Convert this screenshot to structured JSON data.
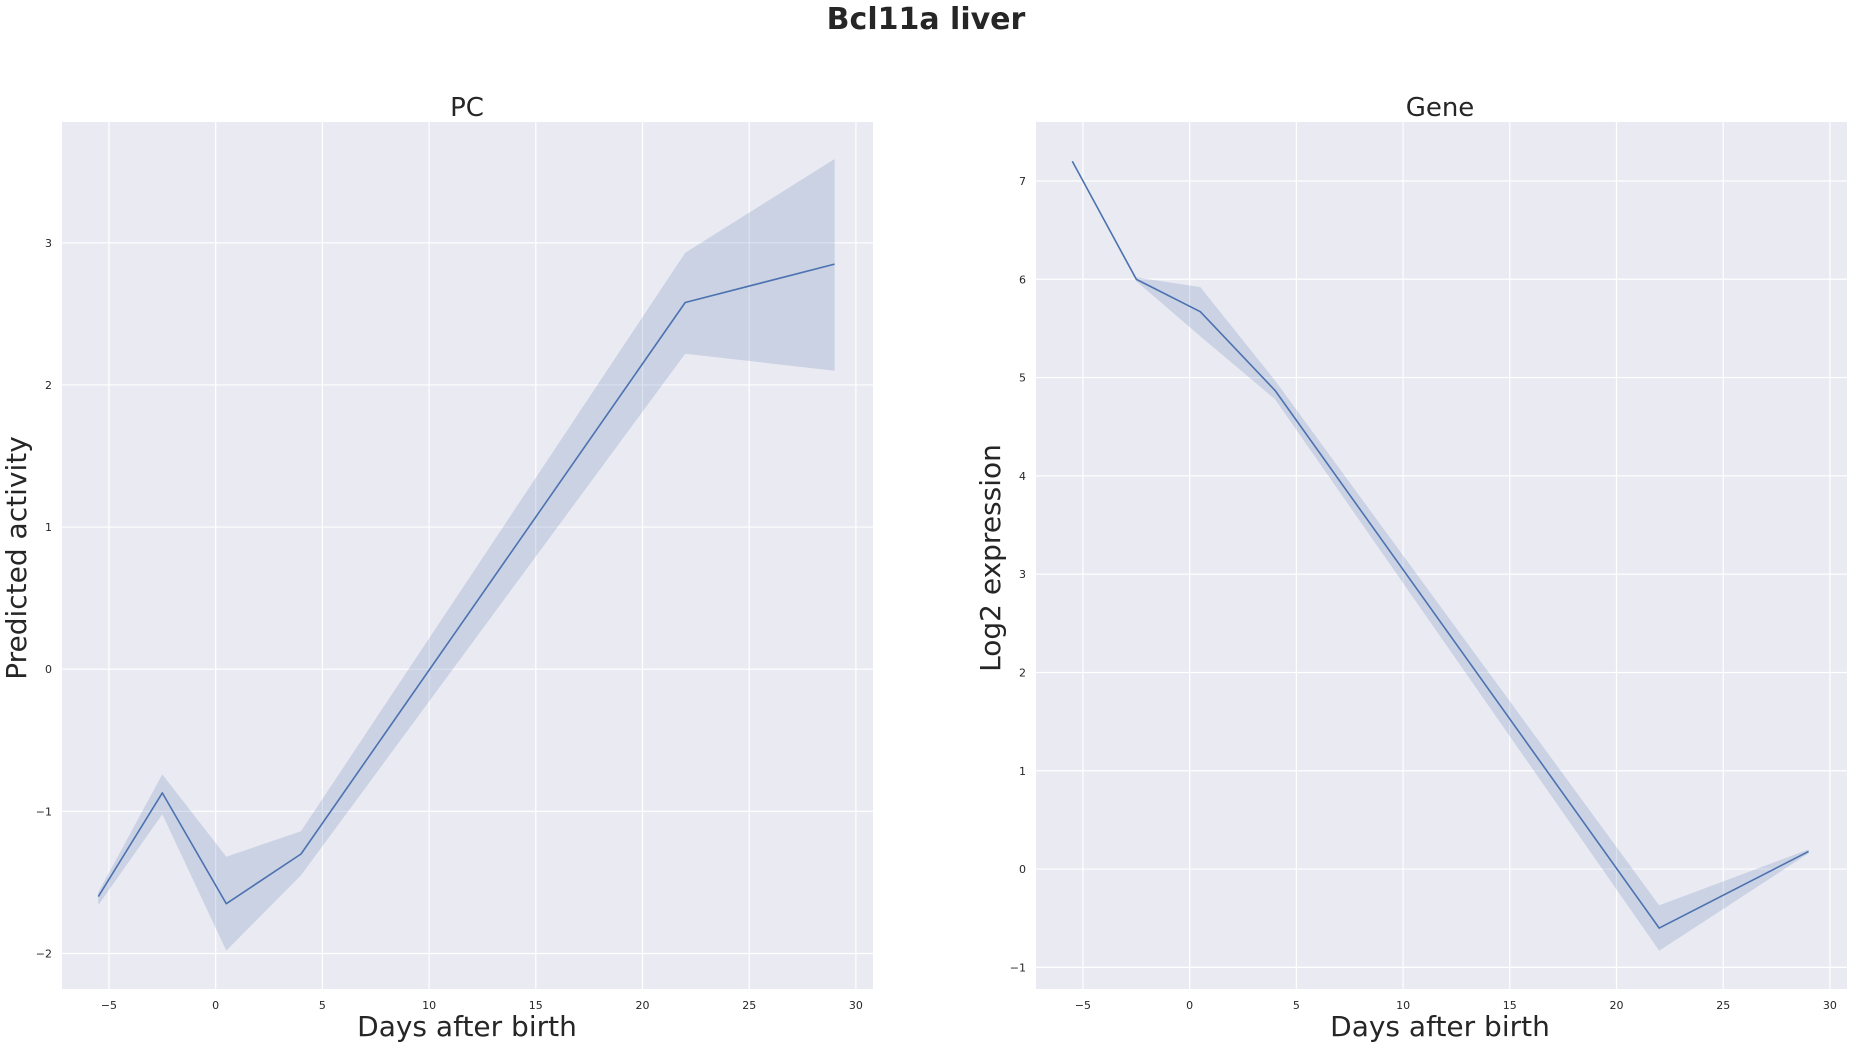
{
  "figure": {
    "suptitle": "Bcl11a liver",
    "background": "#ffffff",
    "axes_facecolor": "#eaeaf2",
    "grid_color": "#ffffff",
    "line_color": "#4c72b0",
    "band_color": "#4c72b0"
  },
  "chart_data": [
    {
      "type": "line",
      "title": "PC",
      "xlabel": "Days after birth",
      "ylabel": "Predicted activity",
      "xlim": [
        -7.2,
        30.8
      ],
      "ylim": [
        -2.25,
        3.85
      ],
      "xticks": [
        -5,
        0,
        5,
        10,
        15,
        20,
        25,
        30
      ],
      "xtick_labels": [
        "−5",
        "0",
        "5",
        "10",
        "15",
        "20",
        "25",
        "30"
      ],
      "yticks": [
        -2,
        -1,
        0,
        1,
        2,
        3
      ],
      "ytick_labels": [
        "−2",
        "−1",
        "0",
        "1",
        "2",
        "3"
      ],
      "grid": true,
      "x": [
        -5.5,
        -2.5,
        0.5,
        4,
        22,
        29
      ],
      "series": [
        {
          "values": [
            -1.6,
            -0.87,
            -1.65,
            -1.3,
            2.58,
            2.85
          ],
          "ci_lower": [
            -1.66,
            -1.02,
            -1.98,
            -1.45,
            2.22,
            2.1
          ],
          "ci_upper": [
            -1.57,
            -0.74,
            -1.32,
            -1.14,
            2.93,
            3.59
          ]
        }
      ]
    },
    {
      "type": "line",
      "title": "Gene",
      "xlabel": "Days after birth",
      "ylabel": "Log2 expression",
      "xlim": [
        -7.2,
        30.8
      ],
      "ylim": [
        -1.22,
        7.6
      ],
      "xticks": [
        -5,
        0,
        5,
        10,
        15,
        20,
        25,
        30
      ],
      "xtick_labels": [
        "−5",
        "0",
        "5",
        "10",
        "15",
        "20",
        "25",
        "30"
      ],
      "yticks": [
        -1,
        0,
        1,
        2,
        3,
        4,
        5,
        6,
        7
      ],
      "ytick_labels": [
        "−1",
        "0",
        "1",
        "2",
        "3",
        "4",
        "5",
        "6",
        "7"
      ],
      "grid": true,
      "x": [
        -5.5,
        -2.5,
        0.5,
        4,
        22,
        29
      ],
      "series": [
        {
          "values": [
            7.2,
            6.0,
            5.67,
            4.87,
            -0.6,
            0.18
          ],
          "ci_lower": [
            7.2,
            5.98,
            5.42,
            4.78,
            -0.83,
            0.16
          ],
          "ci_upper": [
            7.2,
            6.02,
            5.92,
            4.97,
            -0.37,
            0.2
          ]
        }
      ]
    }
  ]
}
